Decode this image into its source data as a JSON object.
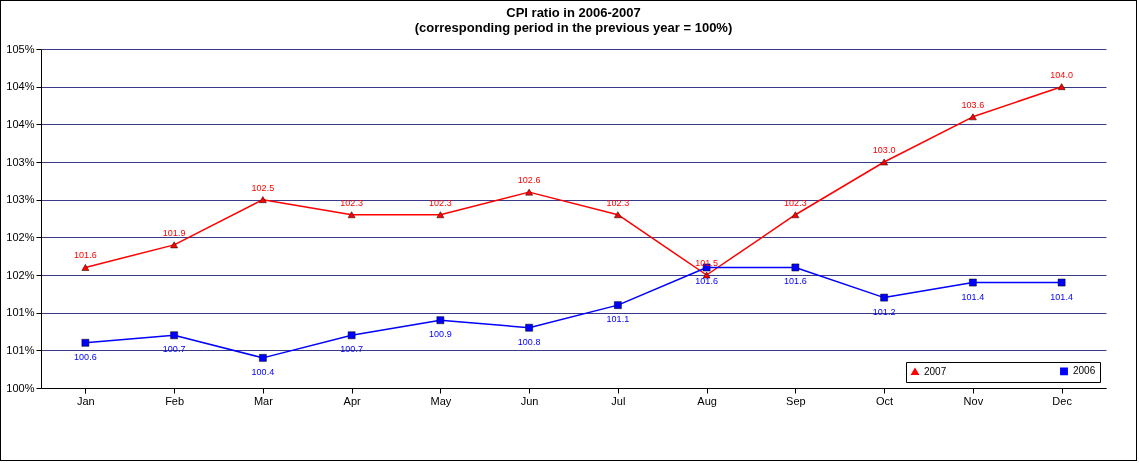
{
  "chart_data": {
    "type": "line",
    "title": "CPI ratio in 2006-2007\n(corresponding period in the previous year = 100%)",
    "categories": [
      "Jan",
      "Feb",
      "Mar",
      "Apr",
      "May",
      "Jun",
      "Jul",
      "Aug",
      "Sep",
      "Oct",
      "Nov",
      "Dec"
    ],
    "series": [
      {
        "name": "2007",
        "color": "#ff0000",
        "marker": "triangle",
        "values": [
          101.6,
          101.9,
          102.5,
          102.3,
          102.3,
          102.6,
          102.3,
          101.5,
          102.3,
          103.0,
          103.6,
          104.0
        ],
        "value_labels": [
          "101.6",
          "101.9",
          "102.5",
          "102.3",
          "102.3",
          "102.6",
          "102.3",
          "101.5",
          "102.3",
          "103.0",
          "103.6",
          "104.0"
        ]
      },
      {
        "name": "2006",
        "color": "#0000ff",
        "marker": "square",
        "values": [
          100.6,
          100.7,
          100.4,
          100.7,
          100.9,
          100.8,
          101.1,
          101.6,
          101.6,
          101.2,
          101.4,
          101.4
        ],
        "value_labels": [
          "100.6",
          "100.7",
          "100.4",
          "100.7",
          "100.9",
          "100.8",
          "101.1",
          "101.6",
          "101.6",
          "101.2",
          "101.4",
          "101.4"
        ]
      }
    ],
    "ylim": [
      100,
      104.5
    ],
    "yticks": [
      {
        "value": 100,
        "label": "100%"
      },
      {
        "value": 100.5,
        "label": "101%"
      },
      {
        "value": 101,
        "label": "101%"
      },
      {
        "value": 101.5,
        "label": "102%"
      },
      {
        "value": 102,
        "label": "102%"
      },
      {
        "value": 102.5,
        "label": "103%"
      },
      {
        "value": 103,
        "label": "103%"
      },
      {
        "value": 103.5,
        "label": "104%"
      },
      {
        "value": 104,
        "label": "104%"
      },
      {
        "value": 104.5,
        "label": "105%"
      }
    ],
    "grid": "y",
    "legend": "bottom right"
  }
}
